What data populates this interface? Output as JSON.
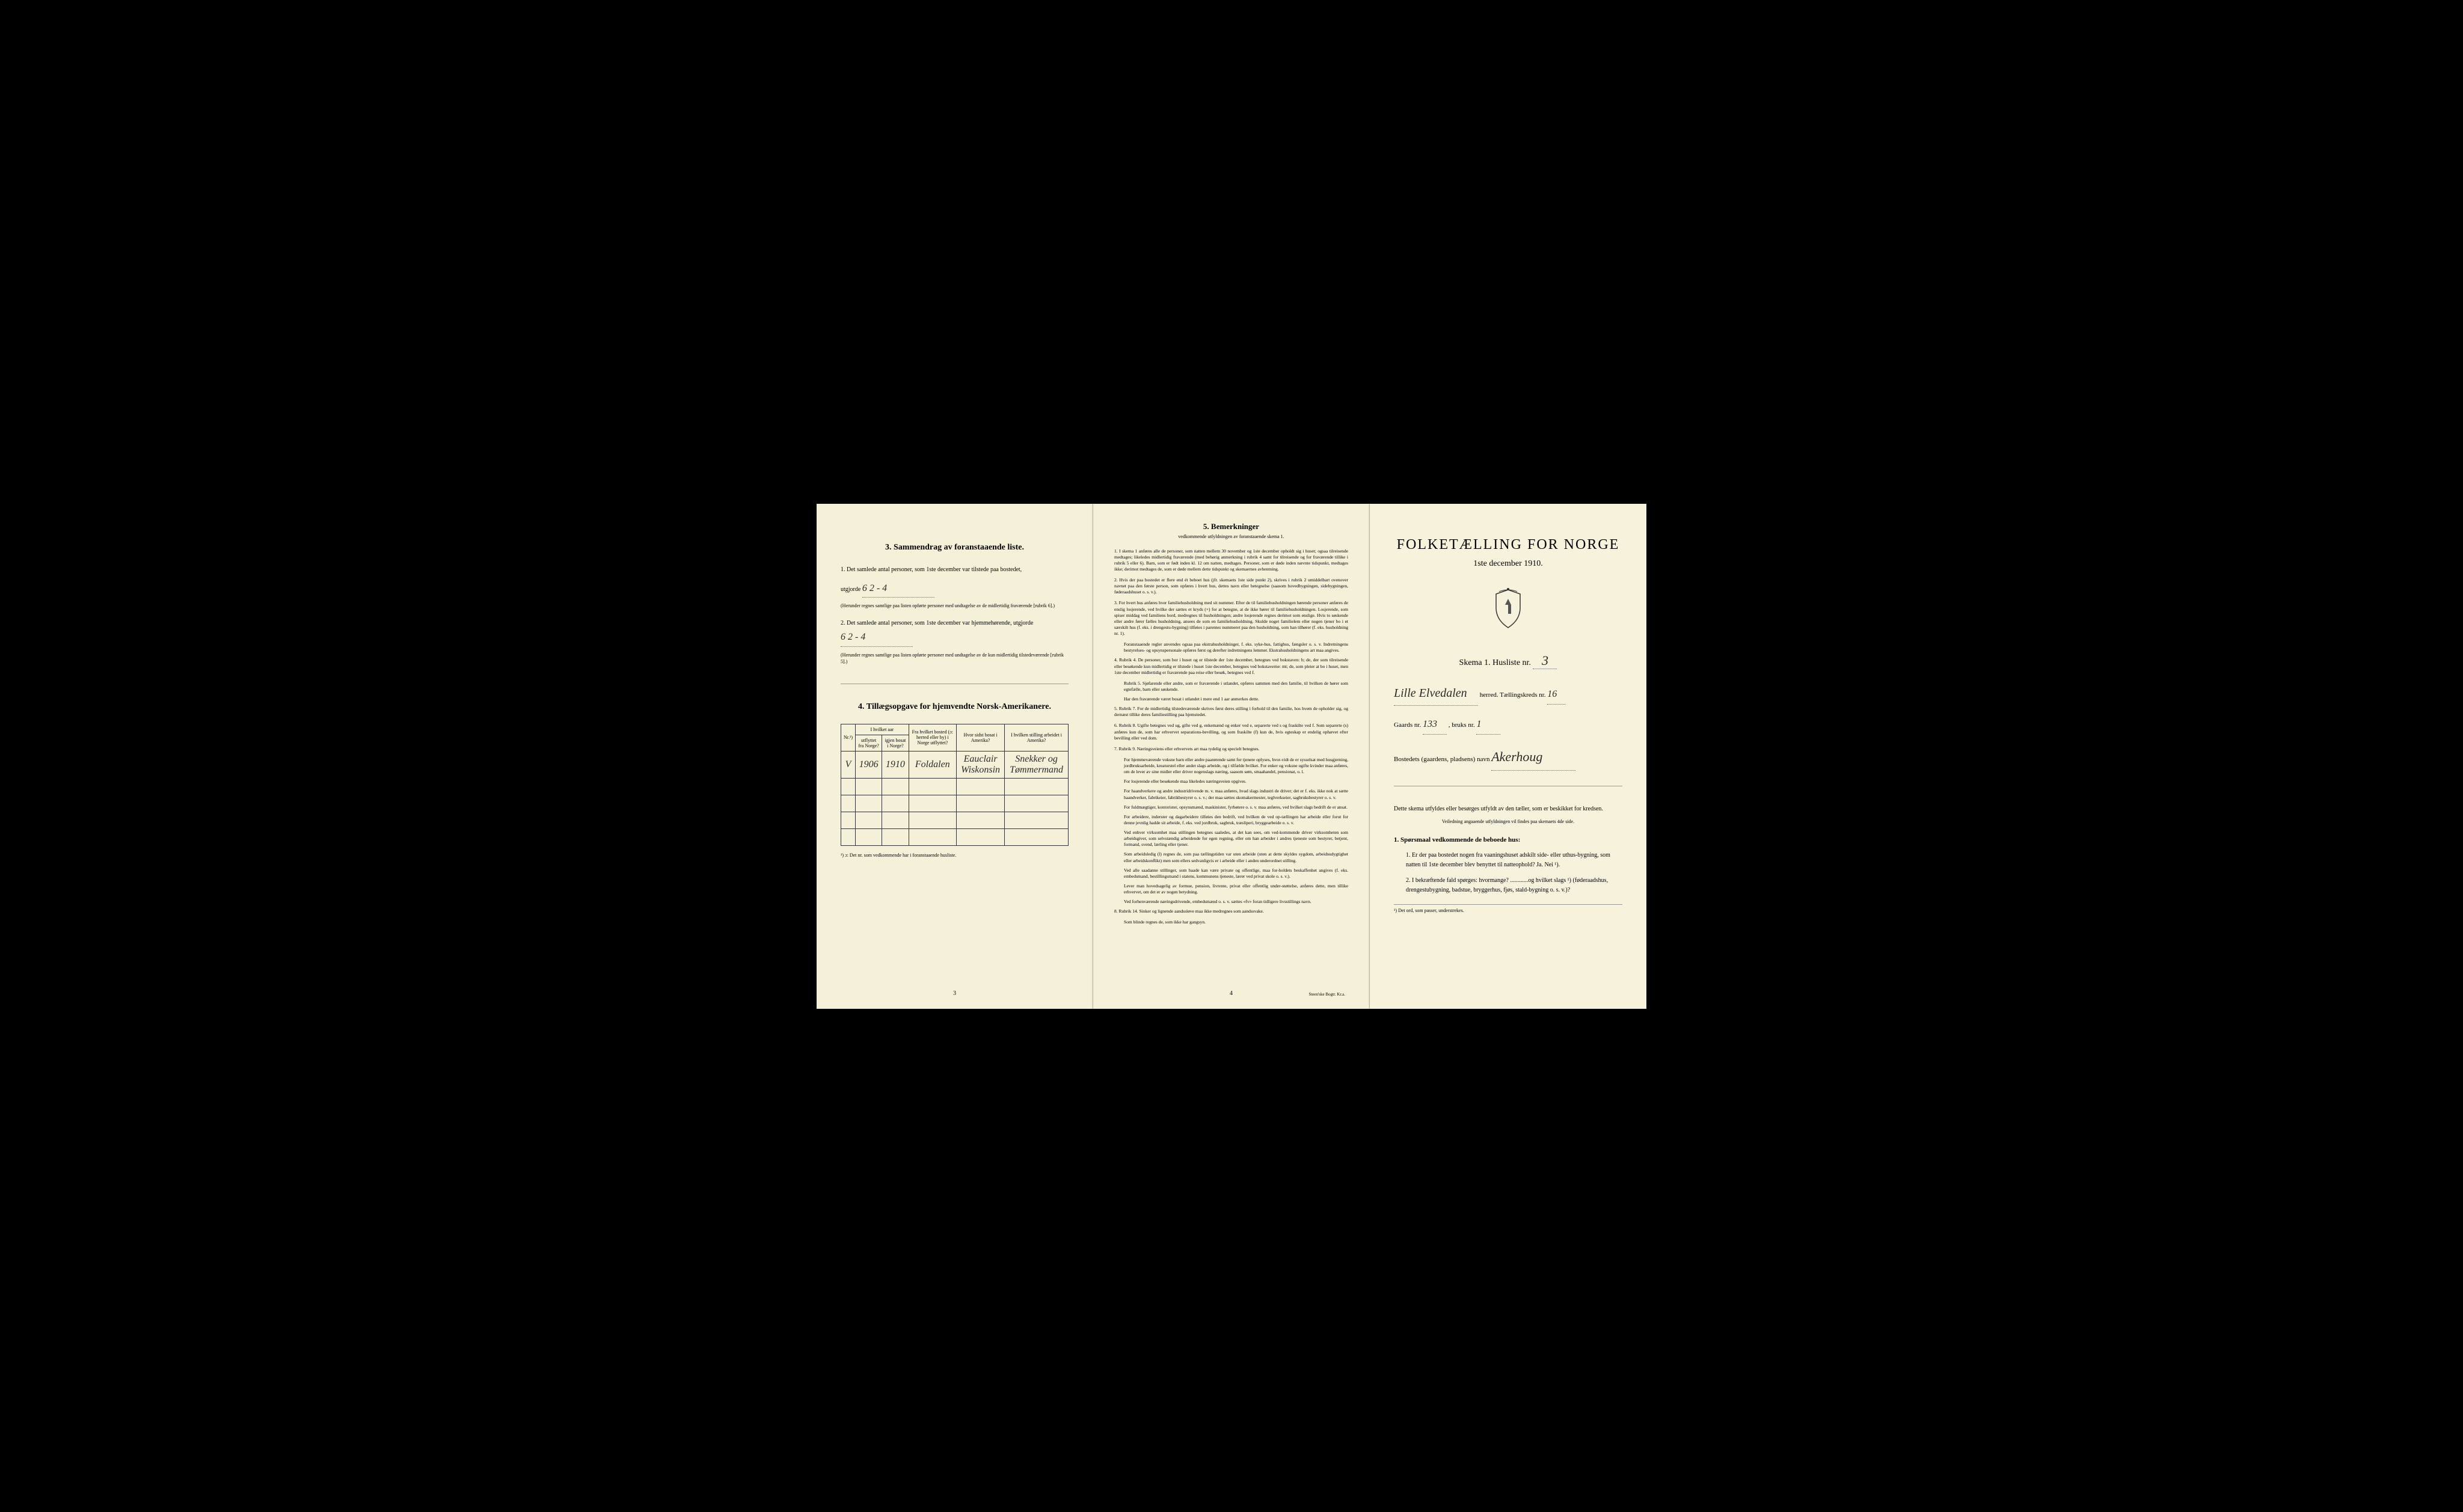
{
  "page1": {
    "section3": {
      "heading": "3.   Sammendrag av foranstaaende liste.",
      "item1_prefix": "1.  Det samlede antal personer, som 1ste december var tilstede paa bostedet,",
      "item1_utgjorde": "utgjorde",
      "item1_value": "6   2 - 4",
      "item1_note": "(Herunder regnes samtlige paa listen opførte personer med undtagelse av de midlertidig fraværende [rubrik 6].)",
      "item2_prefix": "2.  Det samlede antal personer, som 1ste december var hjemmehørende, utgjorde",
      "item2_value": "6   2 - 4",
      "item2_note": "(Herunder regnes samtlige paa listen opførte personer med undtagelse av de kun midlertidig tilstedeværende [rubrik 5].)"
    },
    "section4": {
      "heading": "4.   Tillægsopgave for hjemvendte Norsk-Amerikanere.",
      "col_nr": "Nr.¹)",
      "col_utflyttet_header": "I hvilket aar",
      "col_utflyttet": "utflyttet fra Norge?",
      "col_igjen": "igjen bosat i Norge?",
      "col_fra_bosted": "Fra hvilket bosted (ɔ: herred eller by) i Norge utflyttet?",
      "col_hvor": "Hvor sidst bosat i Amerika?",
      "col_stilling": "I hvilken stilling arbeidet i Amerika?",
      "row1_nr": "V",
      "row1_year1": "1906",
      "row1_year2": "1910",
      "row1_bosted": "Foldalen",
      "row1_hvor": "Eauclair Wiskonsin",
      "row1_stilling": "Snekker og Tømmermand",
      "footnote": "¹) ɔ: Det nr. som vedkommende har i foranstaaende husliste."
    },
    "page_number": "3"
  },
  "page2": {
    "heading": "5.   Bemerkninger",
    "subheading": "vedkommende utfyldningen av foranstaaende skema 1.",
    "items": [
      "1.  I skema 1 anføres alle de personer, som natten mellem 30 november og 1ste december opholdt sig i huset; ogsaa tilreisende medtages; likeledes midlertidig fraværende (med behørig anmerkning i rubrik 4 samt for tilreisende og for fraværende tillike i rubrik 5 eller 6). Barn, som er født inden kl. 12 om natten, medtages.  Personer, som er døde inden nævnte tidspunkt, medtages ikke; derimot medtages de, som er døde mellem dette tidspunkt og skemaernes avhentning.",
      "2.  Hvis der paa bostedet er flere end ét beboet hus (jfr. skemaets 1ste side punkt 2), skrives i rubrik 2 umiddelbart ovenover navnet paa den første person, som opføres i hvert hus, dettes navn eller betegnelse (saasom hovedbygningen, sidebygningen, føderaadshuset o. s. v.).",
      "3.  For hvert hus anføres hver familiehusholdning med sit nummer. Efter de til familiehusholdningen hørende personer anføres de enslig losjerende, ved hvilke der sættes et kryds (×) for at betegne, at de ikke hører til familiehusholdningen.  Losjerende, som spiser middag ved familiens bord, medregnes til husholdningen; andre losjerende regnes derimot som enslige. Hvis to søskende eller andre fører fælles husholdning, ansees de som en familiehusholdning. Skulde noget familielem eller nogen tjener bo i et særskilt hus (f. eks. i drengestu-bygning) tilføies i parentes nummeret paa den husholdning, som han tilhører (f. eks. husholdning nr. 1).",
      "Foranstaaende regler anvendes ogsaa paa ekstrahusholdninger, f. eks. syke-hus, fattighus, fængsler o. s. v.  Indretningens bestyrelses- og opsynspersonale opføres først og derefter indretningens lemmer.  Ekstrahusholdningens art maa angives.",
      "4.  Rubrik 4.  De personer, som bor i huset og er tilstede der 1ste december, betegnes ved bokstaven: b; de, der som tilreisende eller besøkende kun midlertidig er tilstede i huset 1ste december, betegnes ved bokstaverne: mt; de, som pleier at bo i huset, men 1ste december midlertidig er fraværende paa reise eller besøk, betegnes ved f.",
      "Rubrik 5.  Sjøfarende eller andre, som er fraværende i utlandet, opføres sammen med den familie, til hvilken de hører som egtefælle, barn eller søskende.",
      "Har den fraværende været bosat i utlandet i mere end 1 aar anmerkes dette.",
      "5.  Rubrik 7.  For de midlertidig tilstedeværende skrives først deres stilling i forhold til den familie, hos hvem de opholder sig, og dernæst tillike deres familiestilling paa hjemstedet.",
      "6.  Rubrik 8.  Ugifte betegnes ved ug, gifte ved g, enkemænd og enker ved e, separerte ved s og fraskilte ved f.  Som separerte (s) anføres kun de, som har erhvervet separations-bevilling, og som fraskilte (f) kun de, hvis egteskap er endelig ophævet efter bevilling eller ved dom.",
      "7.  Rubrik 9.  Næringsveiens eller erhvervets art maa tydelig og specielt betegnes.",
      "For hjemmeværende voksne barn eller andre paarørende samt for tjenere oplyses, hvor-vidt de er sysselsat med husgjerning, jordbruksarbeide, kreaturstel eller andet slags arbeide, og i tilfælde hvilket. For enker og voksne ugifte kvinder maa anføres, om de lever av sine midler eller driver nogenslags næring, saasom søm, smaahandel, pensionat, o. l.",
      "For losjerende eller besøkende maa likeledes næringsveien opgives.",
      "For haandverkere og andre industridrivende m. v. maa anføres, hvad slags industri de driver; det er f. eks. ikke nok at sætte haandverker, fabrikeier, fabrikbestyrer o. s. v.; der maa sættes skomakermester, teglverkseier, sagbruksbestyrer o. s. v.",
      "For fuldmægtiger, kontorister, opsynsmænd, maskinister, fyrbøtere o. s. v. maa anføres, ved hvilket slags bedrift de er ansat.",
      "For arbeidere, inderster og dagarbeidere tilføies den bedrift, ved hvilken de ved op-tællingen har arbeide eller forut for denne jevnlig hadde sit arbeide, f. eks. ved jordbruk, sagbruk, træsliperi, bryggearbeide o. s. v.",
      "Ved enhver virksomhet maa stillingen betegnes saaledes, at det kan sees, om ved-kommende driver virksomheten som arbeidsgiver, som selvstændig arbeidende for egen regning, eller om han arbeider i andres tjeneste som bestyrer, betjent, formand, svend, lærling eller tjener.",
      "Som arbeidsledig (l) regnes de, som paa tællingstiden var uten arbeide (uten at dette skyldes sygdom, arbeidsudygtighet eller arbeidskonflikt) men som ellers sedvanligvis er i arbeide eller i anden underordnet stilling.",
      "Ved alle saadanne stillinger, som baade kan være private og offentlige, maa for-holdets beskaffenhet angives (f. eks. embedsmand, bestillingsmand i statens, kommunens tjeneste, lærer ved privat skole o. s. v.).",
      "Lever man hovedsagelig av formue, pension, livrente, privat eller offentlig under-støttelse, anføres dette, men tillike erhvervet, om det er av nogen betydning.",
      "Ved forhenværende næringsdrivende, embedsmænd o. s. v. sættes «fv» foran tidligere livsstillings navn.",
      "8.  Rubrik 14.  Sinker og lignende aandssløve maa ikke medregnes som aandssvake.",
      "Som blinde regnes de, som ikke har gangsyn."
    ],
    "page_number": "4",
    "printer": "Steen'ske Bogtr.   Kr.a."
  },
  "page3": {
    "main_title": "FOLKETÆLLING FOR NORGE",
    "date": "1ste december 1910.",
    "skema_label": "Skema 1.   Husliste nr.",
    "husliste_nr": "3",
    "herred_value": "Lille Elvedalen",
    "herred_label": "herred.   Tællingskreds nr.",
    "kreds_nr": "16",
    "gaards_label": "Gaards nr.",
    "gaards_nr": "133",
    "bruks_label": ", bruks nr.",
    "bruks_nr": "1",
    "bosted_label": "Bostedets (gaardens, pladsens) navn",
    "bosted_value": "Akerhoug",
    "instruction1": "Dette skema utfyldes eller besørges utfyldt av den tæller, som er beskikket for kredsen.",
    "instruction2": "Veiledning angaaende utfyldningen vil findes paa skemaets 4de side.",
    "q_heading": "1.  Spørsmaal vedkommende de beboede hus:",
    "q1": "1.  Er der paa bostedet nogen fra vaaningshuset adskilt side- eller uthus-bygning, som natten til 1ste december blev benyttet til natteophold?   Ja.   Nei ¹).",
    "q2": "2.  I bekræftende fald spørges:  hvormange? ............og hvilket slags ¹) (føderaadshus, drengestubygning, badstue, bryggerhus, fjøs, stald-bygning o. s. v.)?",
    "footnote": "¹) Det ord, som passer, understrekes."
  },
  "colors": {
    "paper": "#f5f0d8",
    "paper_light": "#f7f2dc",
    "border": "#d0c8a8",
    "text": "#1a1a1a",
    "background": "#000000"
  }
}
